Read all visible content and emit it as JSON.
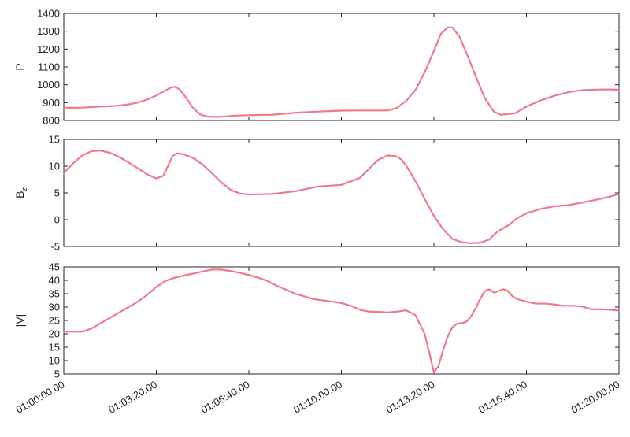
{
  "chart_data": {
    "type": "line",
    "x_tick_labels": [
      "01:00:00.00",
      "01:03:20.00",
      "01:06:40.00",
      "01:10:00.00",
      "01:13:20.00",
      "01:16:40.00",
      "01:20:00.00"
    ],
    "x_tick_seconds": [
      0,
      200,
      400,
      600,
      800,
      1000,
      1200
    ],
    "xlim": [
      0,
      1200
    ],
    "grid": false,
    "line_color": "#f07a8c",
    "panels": [
      {
        "ylabel": "P",
        "ylim": [
          800,
          1400
        ],
        "yticks": [
          800,
          900,
          1000,
          1100,
          1200,
          1300,
          1400
        ],
        "x": [
          0,
          20,
          40,
          60,
          80,
          100,
          120,
          140,
          160,
          180,
          200,
          215,
          230,
          240,
          250,
          265,
          280,
          295,
          310,
          330,
          350,
          370,
          400,
          450,
          500,
          550,
          600,
          650,
          700,
          720,
          740,
          760,
          780,
          800,
          815,
          830,
          840,
          855,
          870,
          890,
          910,
          930,
          945,
          960,
          975,
          1000,
          1030,
          1060,
          1090,
          1120,
          1150,
          1180,
          1200
        ],
        "y": [
          872,
          871,
          872,
          875,
          878,
          880,
          884,
          890,
          900,
          917,
          940,
          962,
          982,
          989,
          975,
          925,
          868,
          834,
          822,
          820,
          823,
          827,
          830,
          832,
          843,
          850,
          855,
          856,
          856,
          870,
          910,
          970,
          1070,
          1190,
          1285,
          1322,
          1320,
          1270,
          1180,
          1050,
          925,
          848,
          832,
          836,
          840,
          878,
          912,
          938,
          958,
          970,
          973,
          974,
          972
        ]
      },
      {
        "ylabel": "B",
        "ylabel_sub": "z",
        "ylim": [
          -5,
          15
        ],
        "yticks": [
          -5,
          0,
          5,
          10,
          15
        ],
        "x": [
          0,
          20,
          40,
          60,
          80,
          100,
          120,
          140,
          160,
          180,
          200,
          215,
          225,
          235,
          245,
          260,
          280,
          300,
          320,
          340,
          360,
          380,
          400,
          450,
          500,
          550,
          600,
          640,
          660,
          680,
          700,
          720,
          730,
          740,
          760,
          780,
          800,
          820,
          840,
          860,
          880,
          900,
          920,
          930,
          940,
          950,
          960,
          980,
          1000,
          1030,
          1060,
          1090,
          1120,
          1150,
          1180,
          1200
        ],
        "y": [
          8.8,
          10.5,
          12.0,
          12.8,
          12.9,
          12.5,
          11.7,
          10.7,
          9.6,
          8.5,
          7.7,
          8.2,
          10.0,
          11.9,
          12.4,
          12.2,
          11.5,
          10.3,
          8.7,
          7.0,
          5.6,
          4.9,
          4.7,
          4.8,
          5.3,
          6.2,
          6.5,
          7.8,
          9.5,
          11.2,
          12.0,
          11.8,
          11.2,
          10.1,
          7.2,
          3.9,
          0.7,
          -1.8,
          -3.6,
          -4.2,
          -4.4,
          -4.3,
          -3.7,
          -2.8,
          -2.1,
          -1.6,
          -1.1,
          0.3,
          1.2,
          2.0,
          2.5,
          2.7,
          3.2,
          3.7,
          4.3,
          4.8
        ]
      },
      {
        "ylabel": "|V|",
        "ylim": [
          5,
          45
        ],
        "yticks": [
          5,
          10,
          15,
          20,
          25,
          30,
          35,
          40,
          45
        ],
        "x": [
          0,
          20,
          40,
          60,
          80,
          100,
          120,
          140,
          160,
          180,
          200,
          220,
          240,
          260,
          280,
          300,
          320,
          340,
          360,
          380,
          400,
          420,
          440,
          460,
          480,
          500,
          520,
          540,
          560,
          580,
          600,
          620,
          640,
          660,
          680,
          700,
          720,
          740,
          760,
          780,
          790,
          800,
          810,
          820,
          830,
          840,
          850,
          860,
          870,
          880,
          890,
          900,
          910,
          920,
          930,
          940,
          950,
          960,
          965,
          970,
          980,
          990,
          1000,
          1020,
          1040,
          1060,
          1080,
          1100,
          1120,
          1140,
          1160,
          1180,
          1200
        ],
        "y": [
          20.8,
          20.8,
          20.8,
          22.0,
          24.0,
          26.0,
          28.0,
          30.0,
          32.0,
          34.5,
          37.5,
          39.8,
          41.0,
          41.8,
          42.5,
          43.3,
          44.0,
          44.0,
          43.5,
          42.8,
          42.0,
          41.0,
          39.8,
          38.0,
          36.5,
          35.0,
          34.0,
          33.0,
          32.5,
          32.0,
          31.5,
          30.5,
          29.0,
          28.3,
          28.2,
          28.0,
          28.3,
          28.8,
          27.0,
          20.0,
          13.0,
          5.5,
          8.0,
          14.0,
          19.0,
          22.5,
          23.8,
          24.0,
          24.5,
          26.5,
          29.5,
          33.0,
          36.0,
          36.6,
          35.4,
          36.0,
          36.7,
          36.0,
          35.0,
          34.0,
          33.0,
          32.5,
          32.0,
          31.3,
          31.3,
          31.0,
          30.5,
          30.5,
          30.2,
          29.2,
          29.2,
          29.0,
          28.7
        ]
      }
    ]
  }
}
